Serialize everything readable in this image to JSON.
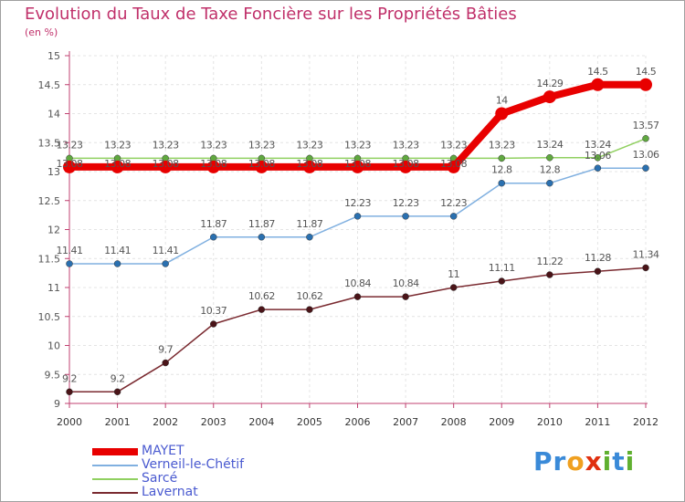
{
  "page": {
    "title": "Evolution du Taux de Taxe Foncière sur les Propriétés Bâties",
    "unit_label": "(en %)"
  },
  "logo": {
    "text": "Proxiti",
    "letters": [
      "P",
      "r",
      "o",
      "x",
      "i",
      "t",
      "i"
    ],
    "colors": [
      "#3a8ad8",
      "#3a8ad8",
      "#f0a020",
      "#e03010",
      "#60b030",
      "#3a8ad8",
      "#60b030"
    ]
  },
  "chart_data": {
    "type": "line",
    "title": "Evolution du Taux de Taxe Foncière sur les Propriétés Bâties",
    "ylabel": "(en %)",
    "xlabel": "",
    "x": [
      "2000",
      "2001",
      "2002",
      "2003",
      "2004",
      "2005",
      "2006",
      "2007",
      "2008",
      "2009",
      "2010",
      "2011",
      "2012"
    ],
    "ylim": [
      9,
      15
    ],
    "yticks": [
      "9",
      "9.5",
      "10",
      "10.5",
      "11",
      "11.5",
      "12",
      "12.5",
      "13",
      "13.5",
      "14",
      "14.5",
      "15"
    ],
    "ytick_values": [
      9,
      9.5,
      10,
      10.5,
      11,
      11.5,
      12,
      12.5,
      13,
      13.5,
      14,
      14.5,
      15
    ],
    "grid": true,
    "series": [
      {
        "name": "Sarcé",
        "color": "#90d060",
        "values": [
          13.23,
          13.23,
          13.23,
          13.23,
          13.23,
          13.23,
          13.23,
          13.23,
          13.23,
          13.23,
          13.24,
          13.24,
          13.57
        ],
        "labels": [
          "13.23",
          "13.23",
          "13.23",
          "13.23",
          "13.23",
          "13.23",
          "13.23",
          "13.23",
          "13.23",
          "13.23",
          "13.24",
          "13.24",
          "13.57"
        ]
      },
      {
        "name": "Verneil-le-Chétif",
        "color": "#80b0e0",
        "values": [
          11.41,
          11.41,
          11.41,
          11.87,
          11.87,
          11.87,
          12.23,
          12.23,
          12.23,
          12.8,
          12.8,
          13.06,
          13.06
        ],
        "labels": [
          "11.41",
          "11.41",
          "11.41",
          "11.87",
          "11.87",
          "11.87",
          "12.23",
          "12.23",
          "12.23",
          "12.8",
          "12.8",
          "13.06",
          "13.06"
        ]
      },
      {
        "name": "Lavernat",
        "color": "#7a2a30",
        "values": [
          9.2,
          9.2,
          9.7,
          10.37,
          10.62,
          10.62,
          10.84,
          10.84,
          11,
          11.11,
          11.22,
          11.28,
          11.34
        ],
        "labels": [
          "9.2",
          "9.2",
          "9.7",
          "10.37",
          "10.62",
          "10.62",
          "10.84",
          "10.84",
          "11",
          "11.11",
          "11.22",
          "11.28",
          "11.34"
        ]
      },
      {
        "name": "MAYET",
        "color": "#e80000",
        "values": [
          13.08,
          13.08,
          13.08,
          13.08,
          13.08,
          13.08,
          13.08,
          13.08,
          13.08,
          14,
          14.29,
          14.5,
          14.5
        ],
        "labels": [
          "13.08",
          "13.08",
          "13.08",
          "13.08",
          "13.08",
          "13.08",
          "13.08",
          "13.08",
          "13.08",
          "14",
          "14.29",
          "14.5",
          "14.5"
        ]
      }
    ],
    "legend": [
      "MAYET",
      "Verneil-le-Chétif",
      "Sarcé",
      "Lavernat"
    ],
    "legend_position": "bottom-left"
  }
}
